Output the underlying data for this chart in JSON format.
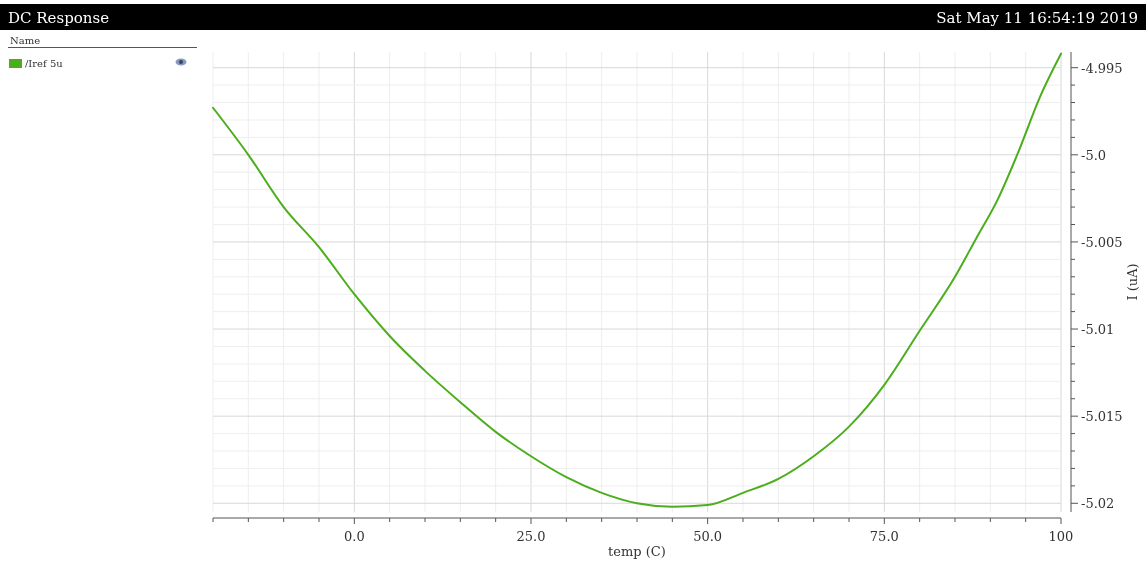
{
  "chart_data": {
    "type": "line",
    "title": "DC Response",
    "subtitle": "Sat May 11 16:54:19 2019",
    "xlabel": "temp (C)",
    "ylabel": "I (uA)",
    "legend_title": "Name",
    "legend": "left",
    "grid": true,
    "marker": "none",
    "line_style": "solid",
    "xlim": [
      -20,
      100
    ],
    "ylim": [
      -5.0205,
      -4.9941
    ],
    "xticks": [
      {
        "value": -20,
        "label": null
      },
      {
        "value": -15,
        "label": null
      },
      {
        "value": -10,
        "label": null
      },
      {
        "value": -5,
        "label": null
      },
      {
        "value": 0,
        "label": "0.0"
      },
      {
        "value": 5,
        "label": null
      },
      {
        "value": 10,
        "label": null
      },
      {
        "value": 15,
        "label": null
      },
      {
        "value": 20,
        "label": null
      },
      {
        "value": 25,
        "label": "25.0"
      },
      {
        "value": 30,
        "label": null
      },
      {
        "value": 35,
        "label": null
      },
      {
        "value": 40,
        "label": null
      },
      {
        "value": 45,
        "label": null
      },
      {
        "value": 50,
        "label": "50.0"
      },
      {
        "value": 55,
        "label": null
      },
      {
        "value": 60,
        "label": null
      },
      {
        "value": 65,
        "label": null
      },
      {
        "value": 70,
        "label": null
      },
      {
        "value": 75,
        "label": "75.0"
      },
      {
        "value": 80,
        "label": null
      },
      {
        "value": 85,
        "label": null
      },
      {
        "value": 90,
        "label": null
      },
      {
        "value": 95,
        "label": null
      },
      {
        "value": 100,
        "label": "100"
      }
    ],
    "yticks": [
      {
        "value": -5.02,
        "label": "-5.02"
      },
      {
        "value": -5.019,
        "label": null
      },
      {
        "value": -5.018,
        "label": null
      },
      {
        "value": -5.017,
        "label": null
      },
      {
        "value": -5.016,
        "label": null
      },
      {
        "value": -5.015,
        "label": "-5.015"
      },
      {
        "value": -5.014,
        "label": null
      },
      {
        "value": -5.013,
        "label": null
      },
      {
        "value": -5.012,
        "label": null
      },
      {
        "value": -5.011,
        "label": null
      },
      {
        "value": -5.01,
        "label": "-5.01"
      },
      {
        "value": -5.009,
        "label": null
      },
      {
        "value": -5.008,
        "label": null
      },
      {
        "value": -5.007,
        "label": null
      },
      {
        "value": -5.006,
        "label": null
      },
      {
        "value": -5.005,
        "label": "-5.005"
      },
      {
        "value": -5.004,
        "label": null
      },
      {
        "value": -5.003,
        "label": null
      },
      {
        "value": -5.002,
        "label": null
      },
      {
        "value": -5.001,
        "label": null
      },
      {
        "value": -5.0,
        "label": "-5.0"
      },
      {
        "value": -4.999,
        "label": null
      },
      {
        "value": -4.998,
        "label": null
      },
      {
        "value": -4.997,
        "label": null
      },
      {
        "value": -4.996,
        "label": null
      },
      {
        "value": -4.995,
        "label": "-4.995"
      }
    ],
    "x": [
      -20,
      -15,
      -10,
      -5,
      0,
      5,
      10,
      15,
      20,
      25,
      30,
      35,
      40,
      45,
      50,
      55,
      60,
      65,
      70,
      75,
      80,
      85,
      88,
      91,
      94,
      97,
      100
    ],
    "series": [
      {
        "name": "/Iref 5u",
        "color": "#4cae1c",
        "values": [
          -4.9973,
          -5.0,
          -5.003,
          -5.0053,
          -5.008,
          -5.0104,
          -5.0124,
          -5.0142,
          -5.0159,
          -5.0173,
          -5.0185,
          -5.0194,
          -5.02,
          -5.0202,
          -5.0201,
          -5.0194,
          -5.0186,
          -5.0173,
          -5.0156,
          -5.0132,
          -5.0101,
          -5.007,
          -5.0048,
          -5.0026,
          -4.9998,
          -4.9967,
          -4.9942
        ]
      }
    ]
  }
}
